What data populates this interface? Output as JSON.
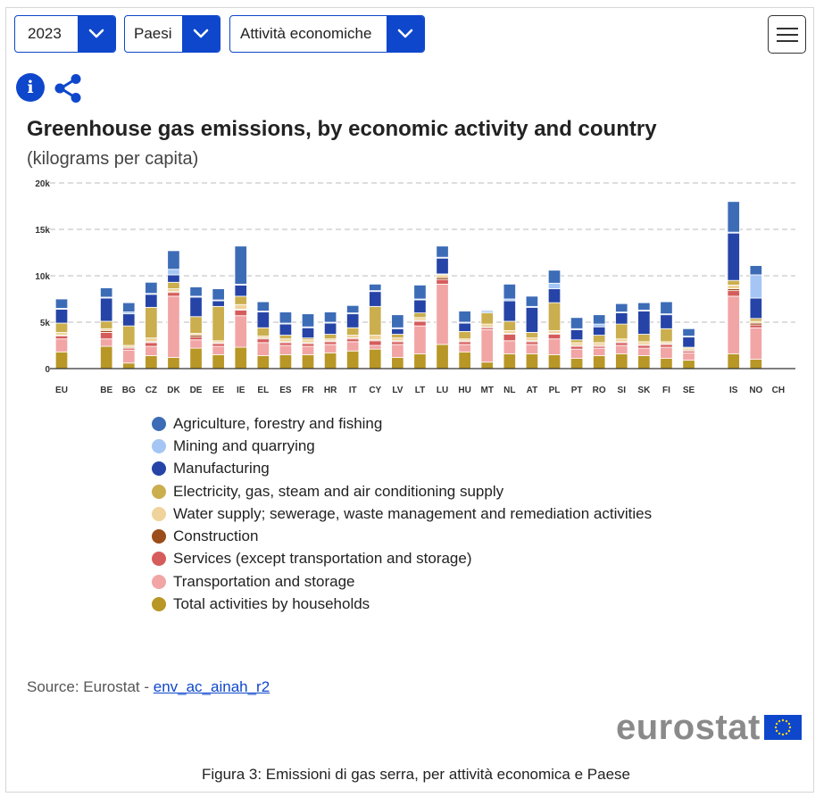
{
  "controls": {
    "year_value": "2023",
    "geo_value": "Paesi",
    "activity_value": "Attività economiche"
  },
  "colors": {
    "brand_blue": "#0e47cb",
    "grid": "#bbbbbb"
  },
  "chart_data": {
    "type": "bar",
    "stacked": true,
    "title": "Greenhouse gas emissions, by economic activity and country",
    "subtitle": "(kilograms per capita)",
    "ylim": [
      0,
      20000
    ],
    "yticks": [
      {
        "value": 0,
        "label": "0"
      },
      {
        "value": 5000,
        "label": "5k"
      },
      {
        "value": 10000,
        "label": "10k"
      },
      {
        "value": 15000,
        "label": "15k"
      },
      {
        "value": 20000,
        "label": "20k"
      }
    ],
    "categories": [
      "EU",
      "",
      "BE",
      "BG",
      "CZ",
      "DK",
      "DE",
      "EE",
      "IE",
      "EL",
      "ES",
      "FR",
      "HR",
      "IT",
      "CY",
      "LV",
      "LT",
      "LU",
      "HU",
      "MT",
      "NL",
      "AT",
      "PL",
      "PT",
      "RO",
      "SI",
      "SK",
      "FI",
      "SE",
      "",
      "IS",
      "NO",
      "CH"
    ],
    "series": [
      {
        "name": "Total activities by households",
        "color": "#b89726",
        "values": [
          1800,
          null,
          2400,
          600,
          1400,
          1200,
          2200,
          1500,
          2300,
          1400,
          1500,
          1500,
          1700,
          1900,
          2100,
          1200,
          1600,
          2600,
          1800,
          700,
          1600,
          1600,
          1500,
          1100,
          1400,
          1600,
          1400,
          1100,
          900,
          null,
          1600,
          1000,
          null
        ]
      },
      {
        "name": "Transportation and storage",
        "color": "#f2a5a5",
        "values": [
          1400,
          null,
          800,
          1400,
          1000,
          6600,
          900,
          900,
          3400,
          1400,
          1000,
          900,
          900,
          1000,
          400,
          1400,
          3000,
          6500,
          800,
          3500,
          1400,
          1000,
          1700,
          1000,
          800,
          900,
          800,
          1200,
          800,
          null,
          6200,
          3400,
          null
        ]
      },
      {
        "name": "Services (except transportation and storage)",
        "color": "#d65c5c",
        "values": [
          300,
          null,
          700,
          200,
          400,
          400,
          300,
          300,
          600,
          400,
          300,
          300,
          300,
          300,
          500,
          300,
          500,
          500,
          300,
          200,
          700,
          300,
          500,
          300,
          200,
          300,
          300,
          300,
          200,
          null,
          600,
          300,
          null
        ]
      },
      {
        "name": "Construction",
        "color": "#9a4d1a",
        "values": [
          100,
          null,
          200,
          100,
          100,
          100,
          200,
          100,
          100,
          100,
          100,
          100,
          100,
          100,
          100,
          100,
          100,
          200,
          100,
          100,
          100,
          100,
          100,
          100,
          100,
          100,
          100,
          100,
          100,
          null,
          200,
          200,
          null
        ]
      },
      {
        "name": "Water supply; sewerage, waste management and remediation activities",
        "color": "#f0d39a",
        "values": [
          300,
          null,
          200,
          200,
          400,
          300,
          200,
          200,
          500,
          200,
          300,
          300,
          200,
          300,
          500,
          300,
          300,
          300,
          200,
          300,
          300,
          300,
          300,
          300,
          300,
          300,
          300,
          200,
          200,
          null,
          400,
          200,
          null
        ]
      },
      {
        "name": "Electricity, gas, steam and air conditioning supply",
        "color": "#cbae4e",
        "values": [
          1000,
          null,
          800,
          2100,
          3300,
          700,
          1800,
          3700,
          900,
          900,
          400,
          200,
          500,
          800,
          3100,
          400,
          500,
          100,
          800,
          1200,
          1000,
          600,
          3000,
          300,
          800,
          1600,
          800,
          1400,
          100,
          null,
          500,
          300,
          null
        ]
      },
      {
        "name": "Manufacturing",
        "color": "#2644a7",
        "values": [
          1500,
          null,
          2500,
          1300,
          1400,
          800,
          2100,
          600,
          1200,
          1700,
          1200,
          1100,
          1200,
          1500,
          1600,
          600,
          1400,
          1700,
          900,
          0,
          2200,
          2700,
          1500,
          1100,
          900,
          1200,
          2500,
          1500,
          1100,
          null,
          5100,
          2200,
          null
        ]
      },
      {
        "name": "Mining and quarrying",
        "color": "#a5c6f4",
        "values": [
          100,
          null,
          100,
          200,
          100,
          600,
          100,
          100,
          100,
          100,
          100,
          100,
          100,
          100,
          100,
          100,
          100,
          100,
          100,
          200,
          200,
          100,
          600,
          100,
          300,
          100,
          100,
          100,
          100,
          null,
          100,
          2500,
          null
        ]
      },
      {
        "name": "Agriculture, forestry and fishing",
        "color": "#3d6cb7",
        "values": [
          1000,
          null,
          1000,
          1000,
          1200,
          2000,
          1000,
          1200,
          4100,
          1000,
          1200,
          1400,
          1100,
          800,
          700,
          1400,
          1500,
          1200,
          1200,
          100,
          1600,
          1100,
          1400,
          1200,
          1000,
          900,
          800,
          1300,
          800,
          null,
          3300,
          1000,
          null
        ]
      }
    ],
    "legend_position": "below"
  },
  "source": {
    "prefix": "Source: Eurostat - ",
    "link_text": "env_ac_ainah_r2"
  },
  "logo_text": "eurostat",
  "caption": "Figura 3: Emissioni di gas serra, per attività economica e Paese"
}
